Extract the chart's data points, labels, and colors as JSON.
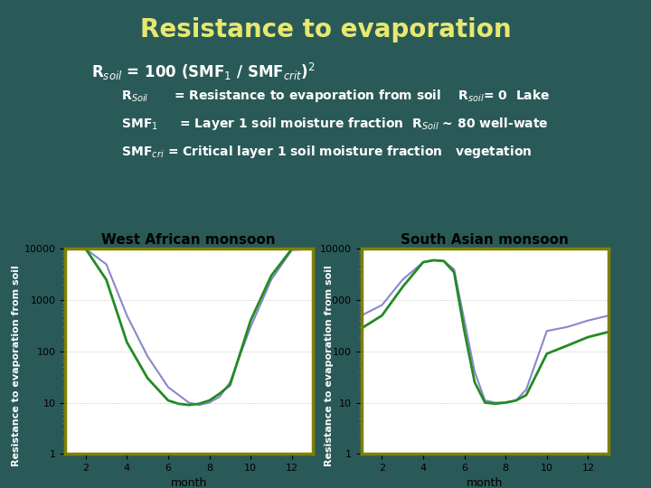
{
  "title": "Resistance to evaporation",
  "title_color": "#e8e870",
  "title_fontsize": 20,
  "bg_color": "#2a5a58",
  "plot_bg_color": "#ffffff",
  "formula_line": "R$_{soil}$ = 100 (SMF$_1$ / SMF$_{crit}$)$^2$",
  "text_line1": "    R$_{Soil}$      = Resistance to evaporation from soil    R$_{soil}$= 0  Lake",
  "text_line2": "    SMF$_1$     = Layer 1 soil moisture fraction  R$_{Soil}$ ~ 80 well-wate",
  "text_line3": "    SMF$_{cri}$ = Critical layer 1 soil moisture fraction   vegetation",
  "ylabel": "Resistance to evaporation from soil",
  "xlabel": "month",
  "plot1_title": "West African monsoon",
  "plot2_title": "South Asian monsoon",
  "west_blue_x": [
    1,
    2,
    3,
    4,
    5,
    6,
    7,
    7.5,
    8,
    8.5,
    9,
    10,
    11,
    12,
    13
  ],
  "west_blue_y": [
    10000,
    10000,
    5000,
    500,
    80,
    20,
    10,
    9,
    10,
    13,
    25,
    300,
    2500,
    9500,
    10000
  ],
  "west_green_x": [
    1,
    2,
    3,
    4,
    5,
    6,
    6.5,
    7,
    7.5,
    8,
    8.5,
    9,
    10,
    11,
    12,
    13
  ],
  "west_green_y": [
    10000,
    10000,
    2500,
    150,
    30,
    11,
    9.5,
    9,
    9.5,
    11,
    15,
    22,
    400,
    3000,
    10000,
    10000
  ],
  "south_blue_x": [
    1,
    2,
    3,
    4,
    4.5,
    5,
    5.5,
    6,
    6.5,
    7,
    7.5,
    8,
    8.5,
    9,
    10,
    11,
    12,
    13
  ],
  "south_blue_y": [
    500,
    800,
    2500,
    5500,
    6000,
    5800,
    4000,
    400,
    40,
    11,
    10,
    10,
    11,
    18,
    250,
    300,
    400,
    500
  ],
  "south_green_x": [
    1,
    2,
    3,
    4,
    4.5,
    5,
    5.5,
    6,
    6.5,
    7,
    7.5,
    8,
    8.5,
    9,
    10,
    11,
    12,
    13
  ],
  "south_green_y": [
    280,
    500,
    1800,
    5500,
    6000,
    5800,
    3500,
    250,
    25,
    10,
    9.5,
    10,
    11,
    14,
    90,
    130,
    190,
    240
  ],
  "line_color_blue": "#8888cc",
  "line_color_green": "#228B22",
  "ylim": [
    1,
    10000
  ],
  "xlim": [
    1,
    13
  ],
  "xticks": [
    2,
    4,
    6,
    8,
    10,
    12
  ],
  "yticks": [
    1,
    10,
    100,
    1000,
    10000
  ],
  "border_color": "#808000",
  "text_color": "#ffffff"
}
